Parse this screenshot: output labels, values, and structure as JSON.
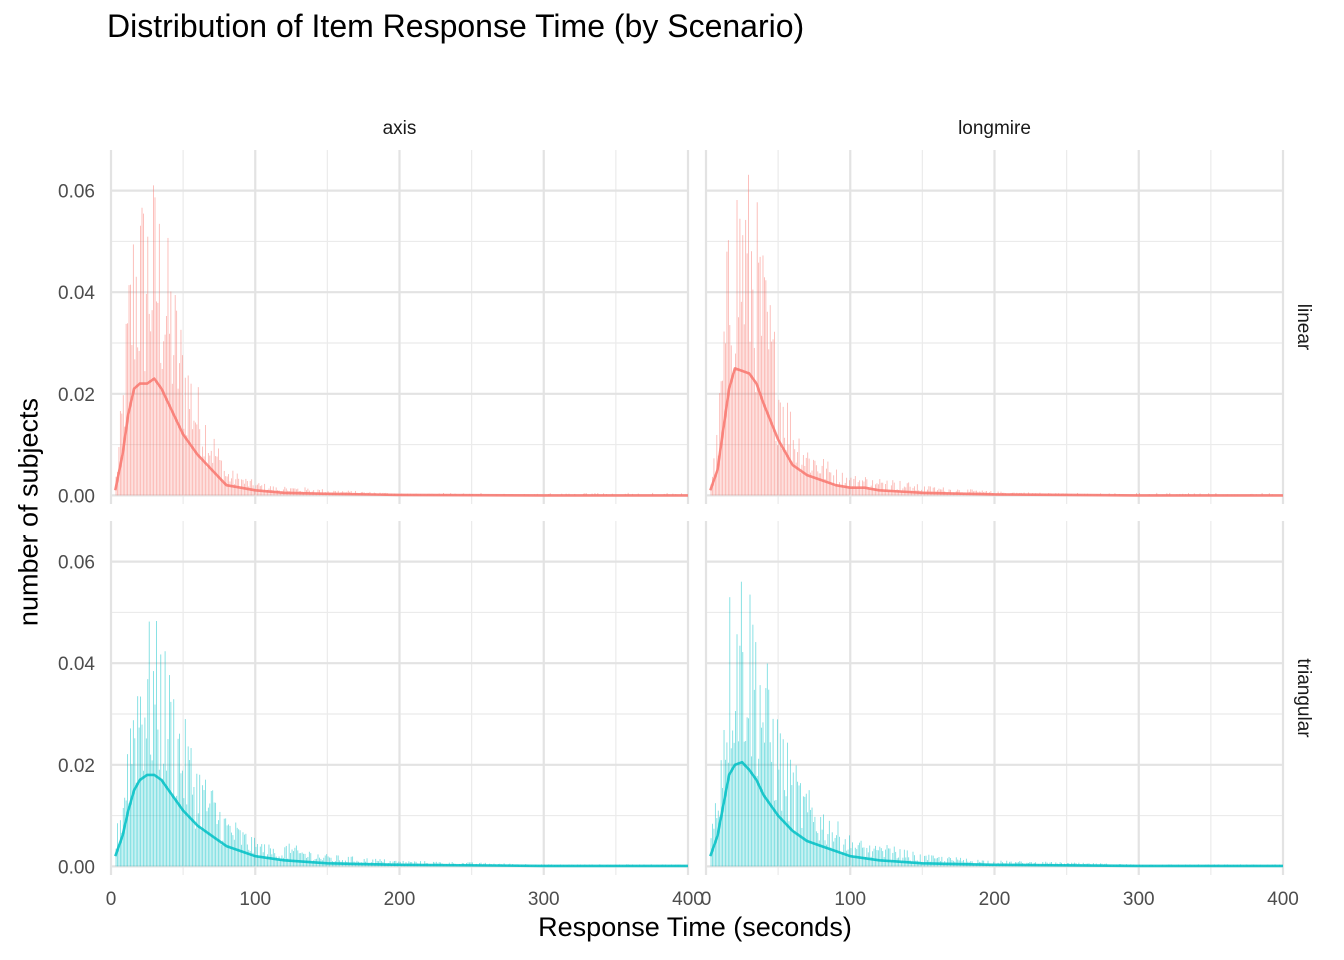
{
  "chart_data": {
    "type": "histogram",
    "title": "Distribution of Item Response Time (by Scenario)",
    "xlabel": "Response Time (seconds)",
    "ylabel": "number of subjects",
    "xlim": [
      0,
      400
    ],
    "ylim": [
      -0.0017,
      0.068
    ],
    "x_ticks": [
      0,
      100,
      200,
      300,
      400
    ],
    "y_ticks": [
      0.0,
      0.02,
      0.04,
      0.06
    ],
    "y_tick_labels": [
      "0.00",
      "0.02",
      "0.04",
      "0.06"
    ],
    "grid": true,
    "facet_columns": [
      "axis",
      "longmire"
    ],
    "facet_rows": [
      "linear",
      "triangular"
    ],
    "colors": {
      "linear": "#F8766D",
      "triangular": "#00BFC4"
    },
    "panels": [
      {
        "row": "linear",
        "col": "axis",
        "density_curve": {
          "x": [
            3,
            8,
            12,
            16,
            20,
            25,
            30,
            35,
            40,
            50,
            60,
            70,
            80,
            90,
            100,
            120,
            150,
            200,
            300,
            400
          ],
          "y": [
            0.001,
            0.008,
            0.016,
            0.021,
            0.022,
            0.022,
            0.023,
            0.021,
            0.018,
            0.012,
            0.008,
            0.005,
            0.002,
            0.0015,
            0.001,
            0.0005,
            0.0003,
            0.0001,
            0.0,
            0.0
          ]
        },
        "peak_bar": 0.059
      },
      {
        "row": "linear",
        "col": "longmire",
        "density_curve": {
          "x": [
            3,
            8,
            12,
            16,
            20,
            25,
            30,
            35,
            40,
            50,
            60,
            70,
            80,
            90,
            100,
            110,
            120,
            150,
            200,
            300,
            400
          ],
          "y": [
            0.001,
            0.005,
            0.013,
            0.021,
            0.025,
            0.0245,
            0.024,
            0.022,
            0.018,
            0.011,
            0.006,
            0.004,
            0.003,
            0.002,
            0.0015,
            0.0015,
            0.001,
            0.0005,
            0.0002,
            0.0,
            0.0
          ]
        },
        "peak_bar": 0.062
      },
      {
        "row": "triangular",
        "col": "axis",
        "density_curve": {
          "x": [
            3,
            8,
            12,
            16,
            20,
            25,
            30,
            35,
            40,
            50,
            60,
            70,
            80,
            90,
            100,
            120,
            150,
            200,
            300,
            400
          ],
          "y": [
            0.002,
            0.006,
            0.011,
            0.015,
            0.017,
            0.018,
            0.018,
            0.017,
            0.015,
            0.011,
            0.008,
            0.006,
            0.004,
            0.003,
            0.002,
            0.0012,
            0.0006,
            0.0003,
            0.0001,
            0.0001
          ]
        },
        "peak_bar": 0.045
      },
      {
        "row": "triangular",
        "col": "longmire",
        "density_curve": {
          "x": [
            3,
            8,
            12,
            16,
            20,
            25,
            30,
            35,
            40,
            50,
            60,
            70,
            80,
            90,
            100,
            120,
            150,
            200,
            300,
            400
          ],
          "y": [
            0.002,
            0.006,
            0.012,
            0.018,
            0.02,
            0.0205,
            0.019,
            0.017,
            0.014,
            0.01,
            0.007,
            0.005,
            0.004,
            0.003,
            0.002,
            0.0012,
            0.0006,
            0.0003,
            0.0001,
            0.0001
          ]
        },
        "peak_bar": 0.058
      }
    ]
  }
}
